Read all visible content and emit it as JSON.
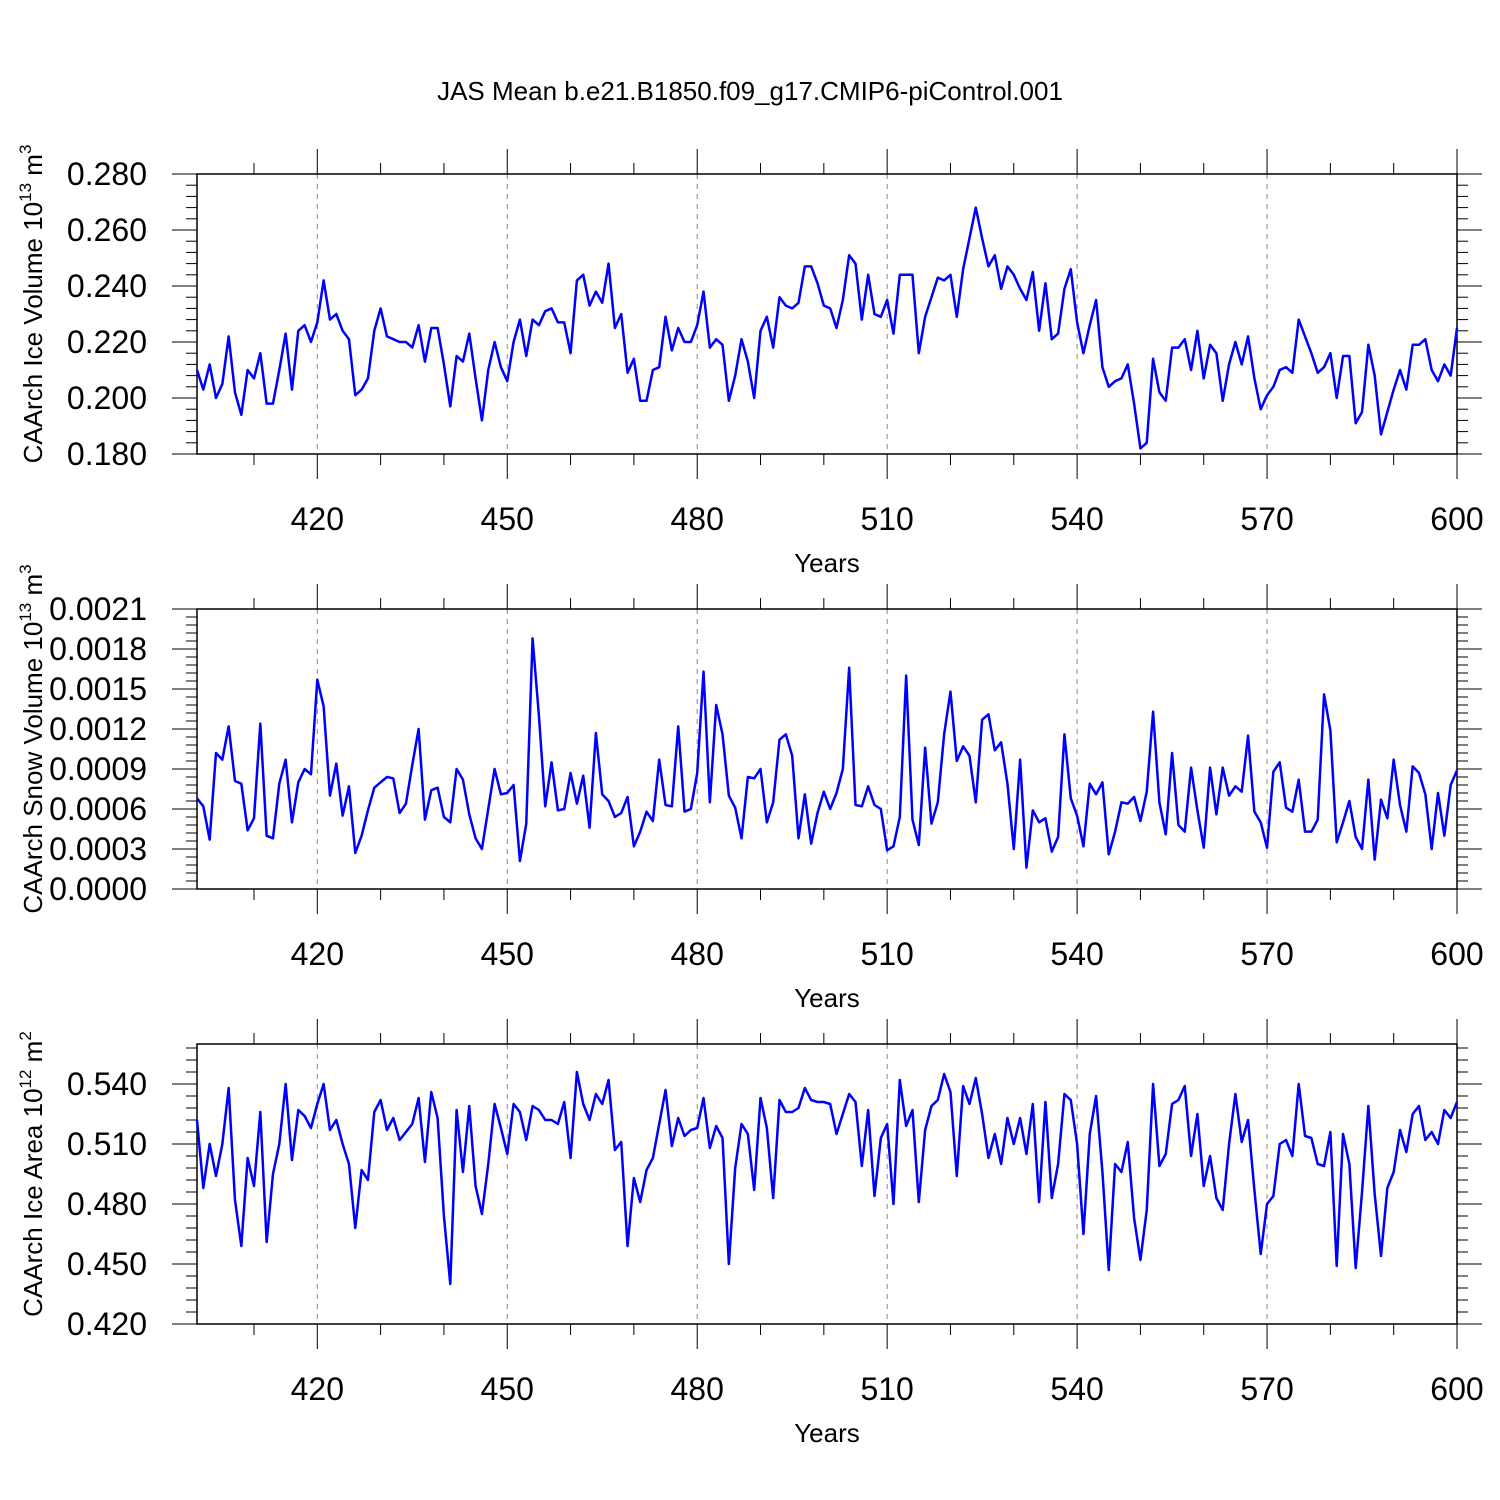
{
  "figure": {
    "title": "JAS Mean b.e21.B1850.f09_g17.CMIP6-piControl.001",
    "line_color": "#0000ff"
  },
  "chart_data": [
    {
      "type": "line",
      "name": "ice-volume",
      "ylabel": "CAArch Ice Volume",
      "ylabel_units_base": "10",
      "ylabel_units_exp": "13",
      "ylabel_units_unit": "m",
      "ylabel_units_unit_exp": "3",
      "xlabel": "Years",
      "xlim": [
        401,
        600
      ],
      "ylim": [
        0.18,
        0.28
      ],
      "xticks": [
        420,
        450,
        480,
        510,
        540,
        570,
        600
      ],
      "xtick_labels": [
        "420",
        "450",
        "480",
        "510",
        "540",
        "570",
        "600"
      ],
      "yticks": [
        0.18,
        0.2,
        0.22,
        0.24,
        0.26,
        0.28
      ],
      "ytick_labels": [
        "0.180",
        "0.200",
        "0.220",
        "0.240",
        "0.260",
        "0.280"
      ],
      "x_start": 401,
      "values": [
        0.21,
        0.203,
        0.212,
        0.2,
        0.205,
        0.222,
        0.202,
        0.194,
        0.21,
        0.207,
        0.216,
        0.198,
        0.198,
        0.21,
        0.223,
        0.203,
        0.224,
        0.226,
        0.22,
        0.227,
        0.242,
        0.228,
        0.23,
        0.224,
        0.221,
        0.201,
        0.203,
        0.207,
        0.224,
        0.232,
        0.222,
        0.221,
        0.22,
        0.22,
        0.218,
        0.226,
        0.213,
        0.225,
        0.225,
        0.212,
        0.197,
        0.215,
        0.213,
        0.223,
        0.207,
        0.192,
        0.21,
        0.22,
        0.211,
        0.206,
        0.22,
        0.228,
        0.215,
        0.228,
        0.226,
        0.231,
        0.232,
        0.227,
        0.227,
        0.216,
        0.242,
        0.244,
        0.233,
        0.238,
        0.234,
        0.248,
        0.225,
        0.23,
        0.209,
        0.214,
        0.199,
        0.199,
        0.21,
        0.211,
        0.229,
        0.217,
        0.225,
        0.22,
        0.22,
        0.226,
        0.238,
        0.218,
        0.221,
        0.219,
        0.199,
        0.208,
        0.221,
        0.213,
        0.2,
        0.224,
        0.229,
        0.218,
        0.236,
        0.233,
        0.232,
        0.234,
        0.247,
        0.247,
        0.241,
        0.233,
        0.232,
        0.225,
        0.235,
        0.251,
        0.248,
        0.228,
        0.244,
        0.23,
        0.229,
        0.235,
        0.223,
        0.244,
        0.244,
        0.244,
        0.216,
        0.229,
        0.236,
        0.243,
        0.242,
        0.244,
        0.229,
        0.246,
        0.257,
        0.268,
        0.257,
        0.247,
        0.251,
        0.239,
        0.247,
        0.244,
        0.239,
        0.235,
        0.245,
        0.224,
        0.241,
        0.221,
        0.223,
        0.239,
        0.246,
        0.227,
        0.216,
        0.226,
        0.235,
        0.211,
        0.204,
        0.206,
        0.207,
        0.212,
        0.198,
        0.182,
        0.184,
        0.214,
        0.202,
        0.199,
        0.218,
        0.218,
        0.221,
        0.21,
        0.224,
        0.207,
        0.219,
        0.216,
        0.199,
        0.212,
        0.22,
        0.212,
        0.222,
        0.207,
        0.196,
        0.201,
        0.204,
        0.21,
        0.211,
        0.209,
        0.228,
        0.222,
        0.216,
        0.209,
        0.211,
        0.216,
        0.2,
        0.215,
        0.215,
        0.191,
        0.195,
        0.219,
        0.208,
        0.187,
        0.195,
        0.203,
        0.21,
        0.203,
        0.219,
        0.219,
        0.221,
        0.21,
        0.206,
        0.212,
        0.208,
        0.225
      ]
    },
    {
      "type": "line",
      "name": "snow-volume",
      "ylabel": "CAArch Snow Volume",
      "ylabel_units_base": "10",
      "ylabel_units_exp": "13",
      "ylabel_units_unit": "m",
      "ylabel_units_unit_exp": "3",
      "xlabel": "Years",
      "xlim": [
        401,
        600
      ],
      "ylim": [
        0.0,
        0.0021
      ],
      "xticks": [
        420,
        450,
        480,
        510,
        540,
        570,
        600
      ],
      "xtick_labels": [
        "420",
        "450",
        "480",
        "510",
        "540",
        "570",
        "600"
      ],
      "yticks": [
        0.0,
        0.0003,
        0.0006,
        0.0009,
        0.0012,
        0.0015,
        0.0018,
        0.0021
      ],
      "ytick_labels": [
        "0.0000",
        "0.0003",
        "0.0006",
        "0.0009",
        "0.0012",
        "0.0015",
        "0.0018",
        "0.0021"
      ],
      "x_start": 401,
      "values": [
        0.00068,
        0.00062,
        0.00037,
        0.00102,
        0.00097,
        0.00122,
        0.00081,
        0.00079,
        0.00044,
        0.00053,
        0.00124,
        0.0004,
        0.00038,
        0.00079,
        0.00097,
        0.0005,
        0.0008,
        0.0009,
        0.00086,
        0.00157,
        0.00137,
        0.0007,
        0.00094,
        0.00055,
        0.00077,
        0.00027,
        0.0004,
        0.00059,
        0.00076,
        0.0008,
        0.00084,
        0.00083,
        0.00057,
        0.00064,
        0.00093,
        0.0012,
        0.00052,
        0.00074,
        0.00076,
        0.00054,
        0.0005,
        0.0009,
        0.00082,
        0.00056,
        0.00038,
        0.0003,
        0.0006,
        0.0009,
        0.00071,
        0.00072,
        0.00078,
        0.00021,
        0.00049,
        0.00188,
        0.0013,
        0.00062,
        0.00095,
        0.00059,
        0.0006,
        0.00087,
        0.00064,
        0.00085,
        0.00046,
        0.00117,
        0.00071,
        0.00066,
        0.00054,
        0.00057,
        0.00069,
        0.00032,
        0.00043,
        0.00058,
        0.00051,
        0.00097,
        0.00063,
        0.00062,
        0.00122,
        0.00058,
        0.0006,
        0.00087,
        0.00163,
        0.00065,
        0.00138,
        0.00116,
        0.0007,
        0.00061,
        0.00038,
        0.00084,
        0.00083,
        0.0009,
        0.0005,
        0.00065,
        0.00112,
        0.00116,
        0.001,
        0.00038,
        0.00071,
        0.00034,
        0.00057,
        0.00073,
        0.0006,
        0.00072,
        0.0009,
        0.00166,
        0.00063,
        0.00062,
        0.00077,
        0.00063,
        0.0006,
        0.00029,
        0.00032,
        0.00054,
        0.0016,
        0.00052,
        0.00033,
        0.00106,
        0.00049,
        0.00065,
        0.00116,
        0.00148,
        0.00096,
        0.00107,
        0.001,
        0.00065,
        0.00127,
        0.00131,
        0.00104,
        0.0011,
        0.00079,
        0.0003,
        0.00097,
        0.00016,
        0.00059,
        0.0005,
        0.00053,
        0.00028,
        0.00039,
        0.00116,
        0.00068,
        0.00055,
        0.00032,
        0.00079,
        0.00071,
        0.0008,
        0.00026,
        0.00043,
        0.00065,
        0.00064,
        0.00069,
        0.00051,
        0.00073,
        0.00133,
        0.00065,
        0.00041,
        0.00102,
        0.00048,
        0.00043,
        0.00091,
        0.00059,
        0.00031,
        0.00091,
        0.00056,
        0.00091,
        0.0007,
        0.00077,
        0.00073,
        0.00115,
        0.00058,
        0.0005,
        0.00031,
        0.00088,
        0.00095,
        0.00061,
        0.00058,
        0.00082,
        0.00043,
        0.00043,
        0.00052,
        0.00146,
        0.00119,
        0.00035,
        0.0005,
        0.00066,
        0.00039,
        0.0003,
        0.00082,
        0.00022,
        0.00067,
        0.00053,
        0.00097,
        0.00063,
        0.00043,
        0.00092,
        0.00087,
        0.00071,
        0.0003,
        0.00072,
        0.0004,
        0.00078,
        0.00089
      ]
    },
    {
      "type": "line",
      "name": "ice-area",
      "ylabel": "CAArch Ice Area",
      "ylabel_units_base": "10",
      "ylabel_units_exp": "12",
      "ylabel_units_unit": "m",
      "ylabel_units_unit_exp": "2",
      "xlabel": "Years",
      "xlim": [
        401,
        600
      ],
      "ylim": [
        0.42,
        0.56
      ],
      "xticks": [
        420,
        450,
        480,
        510,
        540,
        570,
        600
      ],
      "xtick_labels": [
        "420",
        "450",
        "480",
        "510",
        "540",
        "570",
        "600"
      ],
      "yticks": [
        0.42,
        0.45,
        0.48,
        0.51,
        0.54
      ],
      "ytick_labels": [
        "0.420",
        "0.450",
        "0.480",
        "0.510",
        "0.540"
      ],
      "x_start": 401,
      "values": [
        0.522,
        0.488,
        0.51,
        0.494,
        0.51,
        0.538,
        0.482,
        0.459,
        0.503,
        0.489,
        0.526,
        0.461,
        0.495,
        0.51,
        0.54,
        0.502,
        0.527,
        0.524,
        0.518,
        0.53,
        0.54,
        0.517,
        0.522,
        0.51,
        0.5,
        0.468,
        0.497,
        0.492,
        0.526,
        0.532,
        0.517,
        0.523,
        0.512,
        0.516,
        0.52,
        0.533,
        0.501,
        0.536,
        0.523,
        0.474,
        0.44,
        0.527,
        0.496,
        0.529,
        0.489,
        0.475,
        0.5,
        0.53,
        0.518,
        0.505,
        0.53,
        0.526,
        0.512,
        0.529,
        0.527,
        0.522,
        0.522,
        0.52,
        0.531,
        0.503,
        0.546,
        0.53,
        0.522,
        0.535,
        0.53,
        0.542,
        0.507,
        0.511,
        0.459,
        0.493,
        0.481,
        0.497,
        0.503,
        0.52,
        0.537,
        0.509,
        0.523,
        0.514,
        0.517,
        0.518,
        0.533,
        0.508,
        0.519,
        0.513,
        0.45,
        0.498,
        0.52,
        0.515,
        0.487,
        0.533,
        0.518,
        0.483,
        0.532,
        0.526,
        0.526,
        0.528,
        0.538,
        0.532,
        0.531,
        0.531,
        0.53,
        0.515,
        0.525,
        0.535,
        0.531,
        0.499,
        0.527,
        0.484,
        0.513,
        0.52,
        0.48,
        0.542,
        0.519,
        0.527,
        0.481,
        0.517,
        0.529,
        0.532,
        0.545,
        0.536,
        0.494,
        0.539,
        0.53,
        0.543,
        0.525,
        0.503,
        0.515,
        0.5,
        0.523,
        0.51,
        0.523,
        0.505,
        0.53,
        0.481,
        0.531,
        0.483,
        0.5,
        0.535,
        0.532,
        0.51,
        0.465,
        0.515,
        0.534,
        0.496,
        0.447,
        0.5,
        0.496,
        0.511,
        0.473,
        0.452,
        0.477,
        0.54,
        0.499,
        0.505,
        0.53,
        0.532,
        0.539,
        0.504,
        0.525,
        0.489,
        0.504,
        0.483,
        0.477,
        0.51,
        0.535,
        0.511,
        0.522,
        0.487,
        0.455,
        0.48,
        0.484,
        0.51,
        0.512,
        0.504,
        0.54,
        0.514,
        0.513,
        0.5,
        0.499,
        0.516,
        0.449,
        0.515,
        0.5,
        0.448,
        0.486,
        0.529,
        0.485,
        0.454,
        0.488,
        0.496,
        0.517,
        0.506,
        0.525,
        0.529,
        0.512,
        0.516,
        0.51,
        0.527,
        0.523,
        0.531
      ]
    }
  ]
}
